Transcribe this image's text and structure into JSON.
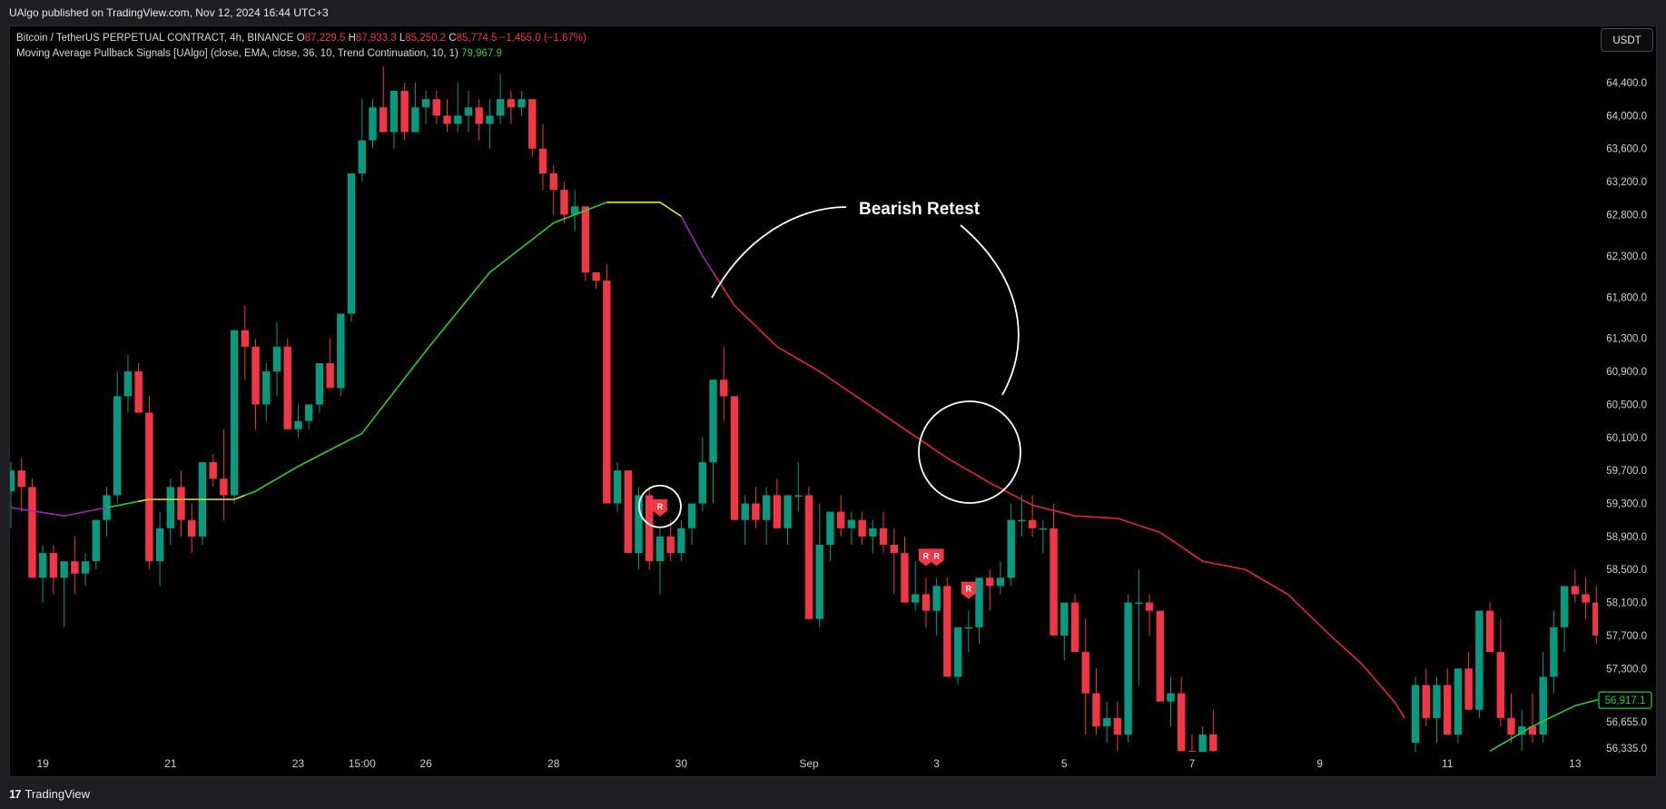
{
  "header": {
    "published_by": "UAlgo published on TradingView.com, Nov 12, 2024 16:44 UTC+3"
  },
  "legend": {
    "symbol_line": "Bitcoin / TetherUS PERPETUAL CONTRACT, 4h, BINANCE",
    "open_label": "O",
    "open_value": "87,229.5",
    "high_label": "H",
    "high_value": "87,933.3",
    "low_label": "L",
    "low_value": "85,250.2",
    "close_label": "C",
    "close_value": "85,774.5",
    "change_value": "−1,455.0 (−1.67%)",
    "indicator_line": "Moving Average Pullback Signals [UAlgo] (close, EMA, close, 36, 10, Trend Continuation, 10, 1)",
    "indicator_value": "79,967.9"
  },
  "currency_button": "USDT",
  "footer": {
    "brand": "TradingView",
    "logo": "tradingview-logo-icon"
  },
  "colors": {
    "up": "#089981",
    "down": "#f23645",
    "ma_green": "#22d12e",
    "ma_yellow": "#e6e61a",
    "ma_purple": "#9c27b0",
    "ma_red": "#e8223a",
    "background": "#000000",
    "annotation": "#ffffff"
  },
  "chart_data": {
    "type": "candlestick",
    "timeframe": "4h",
    "ylim": [
      56200,
      65200
    ],
    "y_ticks": [
      {
        "value": 64400,
        "label": "64,400.0"
      },
      {
        "value": 64000,
        "label": "64,000.0"
      },
      {
        "value": 63600,
        "label": "63,600.0"
      },
      {
        "value": 63200,
        "label": "63,200.0"
      },
      {
        "value": 62800,
        "label": "62,800.0"
      },
      {
        "value": 62300,
        "label": "62,300.0"
      },
      {
        "value": 61800,
        "label": "61,800.0"
      },
      {
        "value": 61300,
        "label": "61,300.0"
      },
      {
        "value": 60900,
        "label": "60,900.0"
      },
      {
        "value": 60500,
        "label": "60,500.0"
      },
      {
        "value": 60100,
        "label": "60,100.0"
      },
      {
        "value": 59700,
        "label": "59,700.0"
      },
      {
        "value": 59300,
        "label": "59,300.0"
      },
      {
        "value": 58900,
        "label": "58,900.0"
      },
      {
        "value": 58500,
        "label": "58,500.0"
      },
      {
        "value": 58100,
        "label": "58,100.0"
      },
      {
        "value": 57700,
        "label": "57,700.0"
      },
      {
        "value": 57300,
        "label": "57,300.0"
      },
      {
        "value": 56655,
        "label": "56,655.0"
      },
      {
        "value": 56335,
        "label": "56,335.0"
      }
    ],
    "last_price_label": "56,917.1",
    "last_price": 56917.1,
    "x_ticks": [
      {
        "bar": 3,
        "label": "19"
      },
      {
        "bar": 15,
        "label": "21"
      },
      {
        "bar": 27,
        "label": "23"
      },
      {
        "bar": 33,
        "label": "15:00"
      },
      {
        "bar": 39,
        "label": "26"
      },
      {
        "bar": 51,
        "label": "28"
      },
      {
        "bar": 63,
        "label": "30"
      },
      {
        "bar": 75,
        "label": "Sep"
      },
      {
        "bar": 87,
        "label": "3"
      },
      {
        "bar": 99,
        "label": "5"
      },
      {
        "bar": 111,
        "label": "7"
      },
      {
        "bar": 123,
        "label": "9"
      },
      {
        "bar": 135,
        "label": "11"
      },
      {
        "bar": 147,
        "label": "13"
      }
    ],
    "annotation_text": "Bearish Retest",
    "signal_label": "R",
    "signal_bars": [
      61,
      86,
      87,
      90
    ],
    "candles": [
      [
        59450,
        59800,
        59000,
        59700
      ],
      [
        59700,
        59850,
        59200,
        59500
      ],
      [
        59500,
        59600,
        58500,
        58400
      ],
      [
        58400,
        58800,
        58100,
        58700
      ],
      [
        58700,
        58800,
        58200,
        58400
      ],
      [
        58400,
        58500,
        57800,
        58600
      ],
      [
        58600,
        58900,
        58200,
        58450
      ],
      [
        58450,
        58700,
        58300,
        58600
      ],
      [
        58600,
        59100,
        58500,
        59100
      ],
      [
        59100,
        59500,
        58900,
        59400
      ],
      [
        59400,
        60900,
        59300,
        60600
      ],
      [
        60600,
        61100,
        60400,
        60900
      ],
      [
        60900,
        61000,
        60500,
        60400
      ],
      [
        60400,
        60600,
        58500,
        58600
      ],
      [
        58600,
        59200,
        58300,
        59000
      ],
      [
        59000,
        59600,
        58800,
        59500
      ],
      [
        59500,
        59700,
        58900,
        59100
      ],
      [
        59100,
        59300,
        58700,
        58900
      ],
      [
        58900,
        59800,
        58800,
        59800
      ],
      [
        59800,
        59900,
        59500,
        59600
      ],
      [
        59600,
        60200,
        59100,
        59400
      ],
      [
        59400,
        61400,
        59300,
        61400
      ],
      [
        61400,
        61700,
        60800,
        61200
      ],
      [
        61200,
        61300,
        60200,
        60500
      ],
      [
        60500,
        61000,
        60300,
        60900
      ],
      [
        60900,
        61500,
        60600,
        61200
      ],
      [
        61200,
        61300,
        60200,
        60200
      ],
      [
        60200,
        60500,
        60100,
        60300
      ],
      [
        60300,
        60500,
        60200,
        60500
      ],
      [
        60500,
        61000,
        60400,
        61000
      ],
      [
        61000,
        61300,
        60700,
        60700
      ],
      [
        60700,
        61600,
        60600,
        61600
      ],
      [
        61600,
        62500,
        61500,
        63300
      ],
      [
        63300,
        64200,
        63200,
        63700
      ],
      [
        63700,
        64200,
        63600,
        64100
      ],
      [
        64100,
        64600,
        63800,
        63800
      ],
      [
        63800,
        64300,
        63600,
        64300
      ],
      [
        64300,
        64400,
        63700,
        63800
      ],
      [
        63800,
        64400,
        63800,
        64100
      ],
      [
        64100,
        64300,
        63900,
        64200
      ],
      [
        64200,
        64300,
        63900,
        64000
      ],
      [
        64000,
        64200,
        63800,
        63900
      ],
      [
        63900,
        64400,
        63800,
        64000
      ],
      [
        64000,
        64300,
        63800,
        64100
      ],
      [
        64100,
        64200,
        63700,
        63900
      ],
      [
        63900,
        64200,
        63600,
        64000
      ],
      [
        64000,
        64500,
        63900,
        64200
      ],
      [
        64200,
        64300,
        63900,
        64100
      ],
      [
        64100,
        64300,
        64000,
        64200
      ],
      [
        64200,
        64200,
        63500,
        63600
      ],
      [
        63600,
        63900,
        63100,
        63300
      ],
      [
        63300,
        63400,
        62800,
        63100
      ],
      [
        63100,
        63200,
        62700,
        62800
      ],
      [
        62800,
        63100,
        62600,
        62900
      ],
      [
        62900,
        62900,
        62000,
        62100
      ],
      [
        62100,
        62100,
        61900,
        62000
      ],
      [
        62000,
        62200,
        59300,
        59300
      ],
      [
        59300,
        59800,
        59200,
        59700
      ],
      [
        59700,
        59700,
        58700,
        58700
      ],
      [
        58700,
        59500,
        58500,
        59400
      ],
      [
        59400,
        59500,
        58500,
        58600
      ],
      [
        58600,
        59000,
        58200,
        58900
      ],
      [
        58900,
        59100,
        58600,
        58700
      ],
      [
        58700,
        59100,
        58600,
        59000
      ],
      [
        59000,
        59300,
        58800,
        59300
      ],
      [
        59300,
        60100,
        59200,
        59800
      ],
      [
        59800,
        60800,
        59300,
        60800
      ],
      [
        60800,
        61200,
        60300,
        60600
      ],
      [
        60600,
        60600,
        59100,
        59100
      ],
      [
        59100,
        59400,
        58800,
        59300
      ],
      [
        59300,
        59500,
        59000,
        59100
      ],
      [
        59100,
        59500,
        58800,
        59400
      ],
      [
        59400,
        59600,
        59100,
        59000
      ],
      [
        59000,
        59400,
        58800,
        59400
      ],
      [
        59400,
        59800,
        59200,
        59400
      ],
      [
        59400,
        59500,
        57900,
        57900
      ],
      [
        57900,
        59300,
        57800,
        58800
      ],
      [
        58800,
        59100,
        58600,
        59200
      ],
      [
        59200,
        59400,
        58900,
        59000
      ],
      [
        59000,
        59200,
        58800,
        59100
      ],
      [
        59100,
        59200,
        58800,
        58900
      ],
      [
        58900,
        59100,
        58700,
        59000
      ],
      [
        59000,
        59200,
        58700,
        58800
      ],
      [
        58800,
        59000,
        58200,
        58700
      ],
      [
        58700,
        58900,
        58200,
        58100
      ],
      [
        58100,
        58600,
        58000,
        58200
      ],
      [
        58200,
        58400,
        57800,
        58000
      ],
      [
        58000,
        58400,
        57700,
        58300
      ],
      [
        58300,
        58400,
        57200,
        57200
      ],
      [
        57200,
        57800,
        57100,
        57800
      ],
      [
        57800,
        58000,
        57500,
        57800
      ],
      [
        57800,
        58400,
        57600,
        58400
      ],
      [
        58400,
        58500,
        58000,
        58300
      ],
      [
        58300,
        58600,
        58200,
        58400
      ],
      [
        58400,
        59300,
        58300,
        59100
      ],
      [
        59100,
        59400,
        58900,
        59100
      ],
      [
        59100,
        59400,
        58900,
        59000
      ],
      [
        59000,
        59100,
        58700,
        59000
      ],
      [
        59000,
        59300,
        58500,
        57700
      ],
      [
        57700,
        58000,
        57400,
        58100
      ],
      [
        58100,
        58200,
        57500,
        57500
      ],
      [
        57500,
        57900,
        56500,
        57000
      ],
      [
        57000,
        57300,
        56500,
        56600
      ],
      [
        56600,
        56900,
        56400,
        56700
      ],
      [
        56700,
        56900,
        56300,
        56500
      ],
      [
        56500,
        58200,
        56400,
        58100
      ],
      [
        58100,
        58500,
        57100,
        58100
      ],
      [
        58100,
        58200,
        57700,
        58000
      ],
      [
        58000,
        58000,
        57100,
        56900
      ],
      [
        56900,
        57200,
        56600,
        57000
      ],
      [
        57000,
        57200,
        56300,
        56300
      ],
      [
        56300,
        56500,
        56000,
        56200
      ],
      [
        56200,
        56600,
        56000,
        56500
      ],
      [
        56500,
        56800,
        56200,
        56300
      ],
      [
        null,
        null,
        null,
        null
      ],
      [
        null,
        null,
        null,
        null
      ],
      [
        null,
        null,
        null,
        null
      ],
      [
        null,
        null,
        null,
        null
      ],
      [
        null,
        null,
        null,
        null
      ],
      [
        null,
        null,
        null,
        null
      ],
      [
        null,
        null,
        null,
        null
      ],
      [
        null,
        null,
        null,
        null
      ],
      [
        null,
        null,
        null,
        null
      ],
      [
        null,
        null,
        null,
        null
      ],
      [
        null,
        null,
        null,
        null
      ],
      [
        null,
        null,
        null,
        null
      ],
      [
        null,
        null,
        null,
        null
      ],
      [
        null,
        null,
        null,
        null
      ],
      [
        null,
        null,
        null,
        null
      ],
      [
        null,
        null,
        null,
        null
      ],
      [
        null,
        null,
        null,
        null
      ],
      [
        null,
        null,
        null,
        null
      ],
      [
        56400,
        57200,
        56200,
        57100
      ],
      [
        57100,
        57300,
        56600,
        56700
      ],
      [
        56700,
        57200,
        56400,
        57100
      ],
      [
        57100,
        57300,
        56600,
        56500
      ],
      [
        56500,
        57300,
        56400,
        57300
      ],
      [
        57300,
        57500,
        56900,
        56800
      ],
      [
        56800,
        58000,
        56700,
        58000
      ],
      [
        58000,
        58100,
        57600,
        57500
      ],
      [
        57500,
        57900,
        56600,
        56700
      ],
      [
        56700,
        57000,
        56400,
        56500
      ],
      [
        56500,
        56800,
        56300,
        56600
      ],
      [
        56600,
        57000,
        56400,
        56500
      ],
      [
        56500,
        57500,
        56400,
        57200
      ],
      [
        57200,
        58000,
        57000,
        57800
      ],
      [
        57800,
        58300,
        57500,
        58300
      ],
      [
        58300,
        58500,
        58100,
        58200
      ],
      [
        58200,
        58400,
        57900,
        58100
      ],
      [
        58100,
        58300,
        57600,
        57700
      ],
      [
        57700,
        58400,
        57600,
        58400
      ],
      [
        58400,
        58600,
        58100,
        58100
      ],
      [
        58100,
        58200,
        57700,
        57800
      ]
    ],
    "ma": [
      [
        0,
        59250
      ],
      [
        5,
        59150
      ],
      [
        9,
        59250
      ],
      [
        13,
        59350
      ],
      [
        17,
        59350
      ],
      [
        21,
        59350
      ],
      [
        23,
        59450
      ],
      [
        27,
        59750
      ],
      [
        33,
        60150
      ],
      [
        39,
        61150
      ],
      [
        45,
        62100
      ],
      [
        51,
        62700
      ],
      [
        56,
        62950
      ],
      [
        61,
        62950
      ],
      [
        63,
        62780
      ],
      [
        65,
        62300
      ],
      [
        68,
        61700
      ],
      [
        72,
        61200
      ],
      [
        76,
        60900
      ],
      [
        80,
        60550
      ],
      [
        84,
        60200
      ],
      [
        88,
        59850
      ],
      [
        92,
        59550
      ],
      [
        96,
        59280
      ],
      [
        100,
        59150
      ],
      [
        104,
        59120
      ],
      [
        108,
        58950
      ],
      [
        112,
        58600
      ],
      [
        116,
        58500
      ],
      [
        120,
        58200
      ],
      [
        124,
        57700
      ],
      [
        127,
        57350
      ],
      [
        130,
        56900
      ],
      [
        131,
        56700
      ]
    ],
    "ma_tail": [
      [
        139,
        56300
      ],
      [
        143,
        56600
      ],
      [
        147,
        56850
      ],
      [
        150,
        56950
      ]
    ],
    "ma_segments": [
      {
        "from": 0,
        "to": 9,
        "color": "purple"
      },
      {
        "from": 9,
        "to": 12,
        "color": "green"
      },
      {
        "from": 12,
        "to": 22,
        "color": "yellow"
      },
      {
        "from": 22,
        "to": 56,
        "color": "green"
      },
      {
        "from": 56,
        "to": 63,
        "color": "yellow"
      },
      {
        "from": 63,
        "to": 66,
        "color": "purple"
      },
      {
        "from": 66,
        "to": 150,
        "color": "red"
      }
    ]
  }
}
